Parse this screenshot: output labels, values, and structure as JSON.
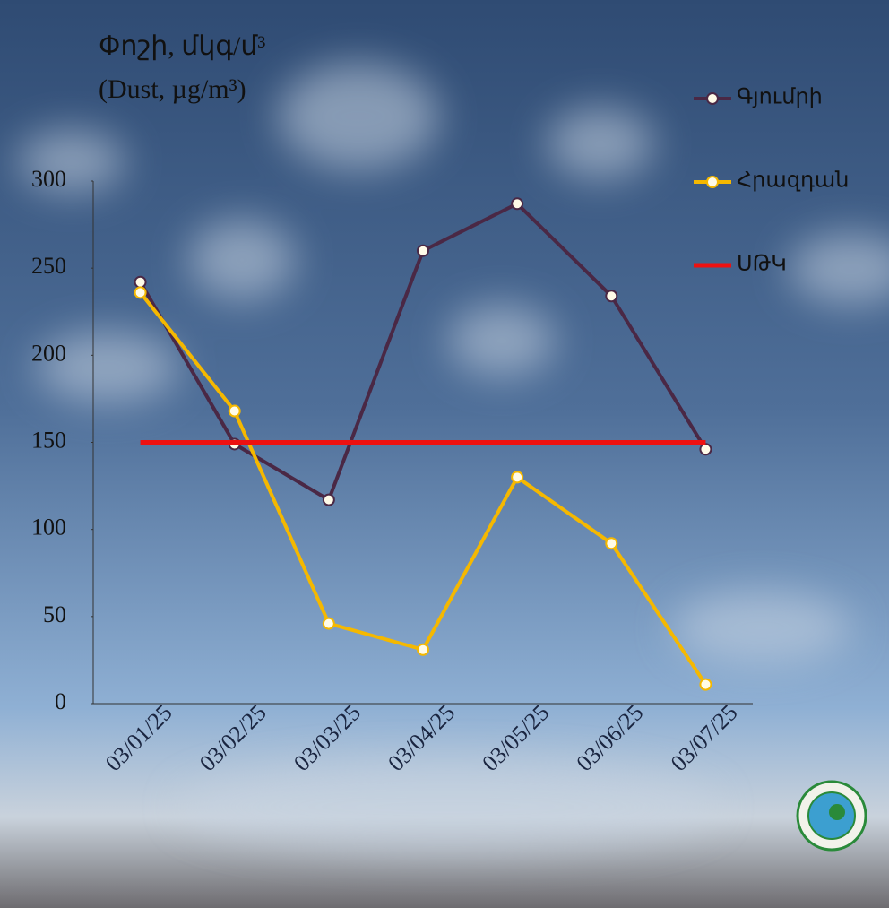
{
  "chart_data": {
    "type": "line",
    "title": "Փոշի, մկգ/մ³",
    "subtitle": "(Dust, µg/m³)",
    "categories": [
      "03/01/25",
      "03/02/25",
      "03/03/25",
      "03/04/25",
      "03/05/25",
      "03/06/25",
      "03/07/25"
    ],
    "series": [
      {
        "name": "Գյումրի",
        "color": "#4a2845",
        "marker": true,
        "values": [
          242,
          149,
          117,
          260,
          287,
          234,
          146
        ]
      },
      {
        "name": "Հրազդան",
        "color": "#f5b800",
        "marker": true,
        "values": [
          236,
          168,
          46,
          31,
          130,
          92,
          11
        ]
      },
      {
        "name": "ՍԹԿ",
        "color": "#ee1111",
        "marker": false,
        "values": [
          150,
          150,
          150,
          150,
          150,
          150,
          150
        ]
      }
    ],
    "ylim": [
      0,
      300
    ],
    "yticks": [
      0,
      50,
      100,
      150,
      200,
      250,
      300
    ],
    "grid": false,
    "legend": "top-right"
  }
}
